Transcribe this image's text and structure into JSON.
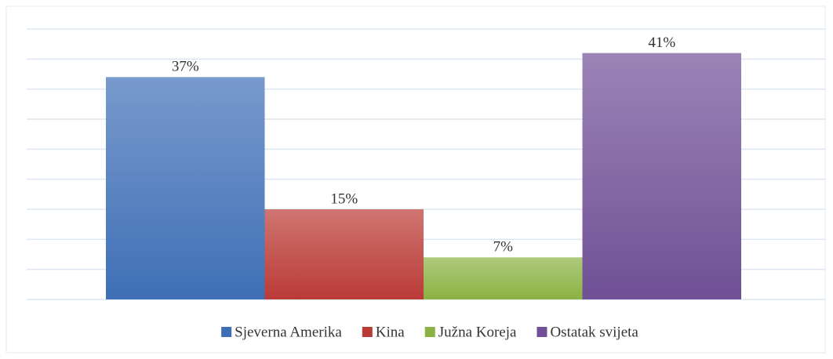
{
  "chart_data": {
    "type": "bar",
    "series": [
      {
        "name": "Sjeverna Amerika",
        "color": "#3e6fb6",
        "values": [
          37
        ],
        "value_labels": [
          "37%"
        ]
      },
      {
        "name": "Kina",
        "color": "#ba3a36",
        "values": [
          15
        ],
        "value_labels": [
          "15%"
        ]
      },
      {
        "name": "Južna Koreja",
        "color": "#8bb243",
        "values": [
          7
        ],
        "value_labels": [
          "7%"
        ]
      },
      {
        "name": "Ostatak svijeta",
        "color": "#704f96",
        "values": [
          41
        ],
        "value_labels": [
          "41%"
        ]
      }
    ],
    "ylim": [
      0,
      45
    ],
    "yticks": [
      0,
      5,
      10,
      15,
      20,
      25,
      30,
      35,
      40,
      45
    ],
    "grid": true,
    "legend": "bottom"
  }
}
